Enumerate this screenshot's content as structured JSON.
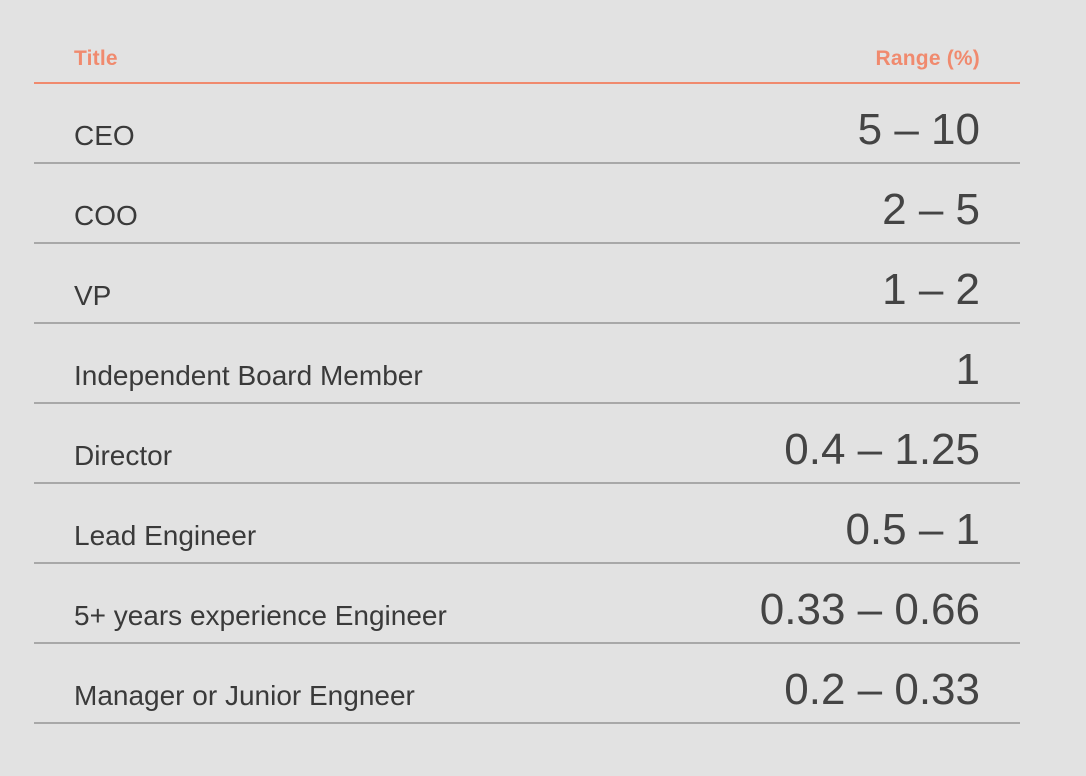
{
  "table": {
    "headers": {
      "title": "Title",
      "range": "Range (%)"
    },
    "rows": [
      {
        "title": "CEO",
        "range": "5 – 10"
      },
      {
        "title": "COO",
        "range": "2 – 5"
      },
      {
        "title": "VP",
        "range": "1 – 2"
      },
      {
        "title": "Independent Board Member",
        "range": "1"
      },
      {
        "title": "Director",
        "range": "0.4 – 1.25"
      },
      {
        "title": "Lead Engineer",
        "range": "0.5 – 1"
      },
      {
        "title": "5+ years experience Engineer",
        "range": "0.33 – 0.66"
      },
      {
        "title": "Manager or Junior Engneer",
        "range": "0.2 – 0.33"
      }
    ]
  },
  "colors": {
    "accent": "#f08a6e",
    "background": "#e2e2e2",
    "divider": "#a8a8a8",
    "text": "#3a3a3a"
  }
}
